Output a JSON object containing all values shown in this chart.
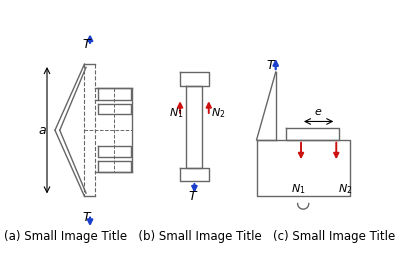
{
  "bg_color": "#ffffff",
  "caption": "(a) Small Image Title   (b) Small Image Title   (c) Small Image Title",
  "caption_fontsize": 8.5,
  "arrow_color_blue": "#1a3fcc",
  "arrow_color_red": "#cc1111",
  "line_color": "#666666",
  "text_color": "#000000"
}
